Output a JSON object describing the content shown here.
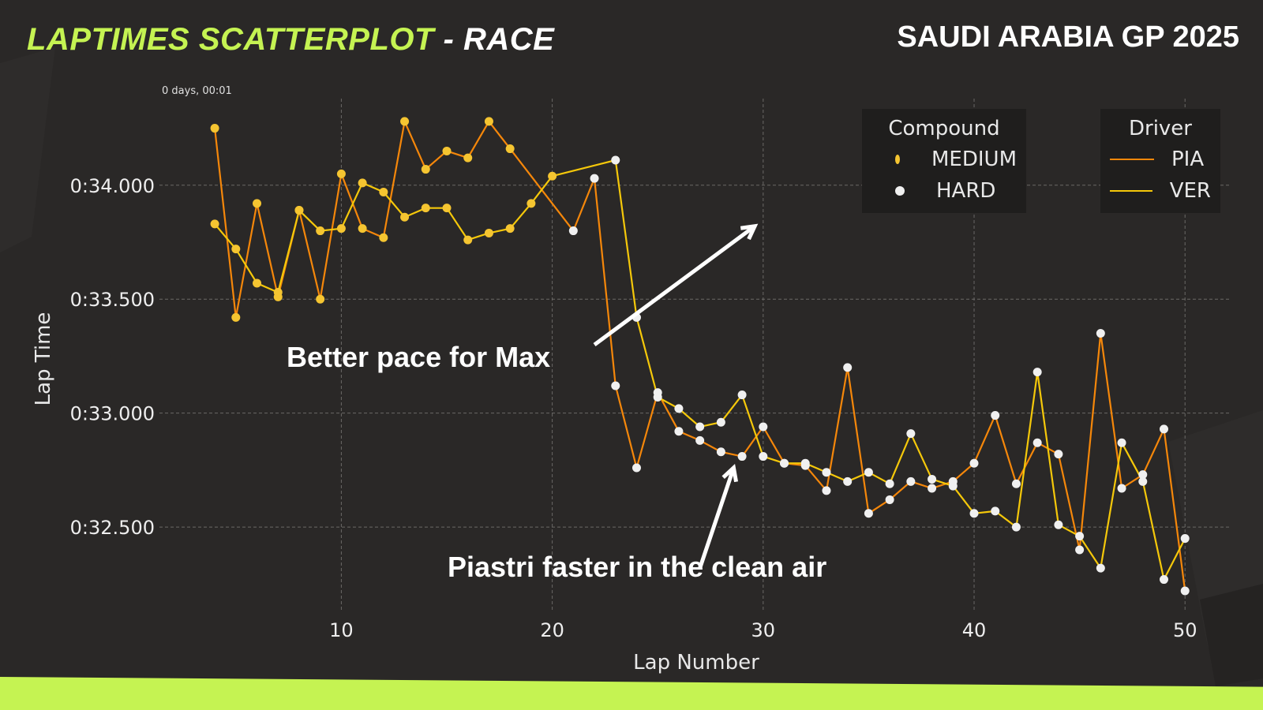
{
  "header": {
    "title_accent": "LAPTIMES SCATTERPLOT",
    "title_rest": " - RACE",
    "event": "SAUDI ARABIA GP 2025"
  },
  "axis_offset_text": "0 days, 00:01",
  "annotations": [
    {
      "text": "Better pace for Max",
      "arrow_from": [
        22,
        33.3
      ],
      "arrow_to": [
        29.6,
        33.82
      ]
    },
    {
      "text": "Piastri faster in the clean air",
      "arrow_from": [
        27,
        32.32
      ],
      "arrow_to": [
        28.6,
        32.76
      ]
    }
  ],
  "legend": {
    "compound_title": "Compound",
    "compounds": [
      {
        "label": "MEDIUM",
        "color": "#f5c531"
      },
      {
        "label": "HARD",
        "color": "#f0f0f0"
      }
    ],
    "driver_title": "Driver",
    "drivers": [
      {
        "label": "PIA",
        "color": "#f5870a"
      },
      {
        "label": "VER",
        "color": "#f5c80a"
      }
    ]
  },
  "colors": {
    "accent": "#c5f352",
    "background": "#2a2827",
    "pia_line": "#f5870a",
    "ver_line": "#f5c80a",
    "medium": "#f5c531",
    "hard": "#f0f0f0"
  },
  "chart_data": {
    "type": "scatter",
    "title": "",
    "xlabel": "Lap Number",
    "ylabel": "Lap Time",
    "xlim": [
      2.5,
      52.2
    ],
    "ylim": [
      32.13,
      34.38
    ],
    "xticks": [
      10,
      20,
      30,
      40,
      50
    ],
    "yticks": [
      32.5,
      33.0,
      33.5,
      34.0
    ],
    "ytick_labels": [
      "0:32.500",
      "0:33.000",
      "0:33.500",
      "0:34.000"
    ],
    "grid": true,
    "series": [
      {
        "name": "PIA",
        "color": "#f5870a",
        "points": [
          {
            "x": 4,
            "y": 34.25,
            "c": "MEDIUM"
          },
          {
            "x": 5,
            "y": 33.42,
            "c": "MEDIUM"
          },
          {
            "x": 6,
            "y": 33.92,
            "c": "MEDIUM"
          },
          {
            "x": 7,
            "y": 33.51,
            "c": "MEDIUM"
          },
          {
            "x": 8,
            "y": 33.89,
            "c": "MEDIUM"
          },
          {
            "x": 9,
            "y": 33.5,
            "c": "MEDIUM"
          },
          {
            "x": 10,
            "y": 34.05,
            "c": "MEDIUM"
          },
          {
            "x": 11,
            "y": 33.81,
            "c": "MEDIUM"
          },
          {
            "x": 12,
            "y": 33.77,
            "c": "MEDIUM"
          },
          {
            "x": 13,
            "y": 34.28,
            "c": "MEDIUM"
          },
          {
            "x": 14,
            "y": 34.07,
            "c": "MEDIUM"
          },
          {
            "x": 15,
            "y": 34.15,
            "c": "MEDIUM"
          },
          {
            "x": 16,
            "y": 34.12,
            "c": "MEDIUM"
          },
          {
            "x": 17,
            "y": 34.28,
            "c": "MEDIUM"
          },
          {
            "x": 18,
            "y": 34.16,
            "c": "MEDIUM"
          },
          {
            "x": 21,
            "y": 33.8,
            "c": "HARD"
          },
          {
            "x": 22,
            "y": 34.03,
            "c": "HARD"
          },
          {
            "x": 23,
            "y": 33.12,
            "c": "HARD"
          },
          {
            "x": 24,
            "y": 32.76,
            "c": "HARD"
          },
          {
            "x": 25,
            "y": 33.09,
            "c": "HARD"
          },
          {
            "x": 26,
            "y": 32.92,
            "c": "HARD"
          },
          {
            "x": 27,
            "y": 32.88,
            "c": "HARD"
          },
          {
            "x": 28,
            "y": 32.83,
            "c": "HARD"
          },
          {
            "x": 29,
            "y": 32.81,
            "c": "HARD"
          },
          {
            "x": 30,
            "y": 32.94,
            "c": "HARD"
          },
          {
            "x": 31,
            "y": 32.78,
            "c": "HARD"
          },
          {
            "x": 32,
            "y": 32.77,
            "c": "HARD"
          },
          {
            "x": 33,
            "y": 32.66,
            "c": "HARD"
          },
          {
            "x": 34,
            "y": 33.2,
            "c": "HARD"
          },
          {
            "x": 35,
            "y": 32.56,
            "c": "HARD"
          },
          {
            "x": 36,
            "y": 32.62,
            "c": "HARD"
          },
          {
            "x": 37,
            "y": 32.7,
            "c": "HARD"
          },
          {
            "x": 38,
            "y": 32.67,
            "c": "HARD"
          },
          {
            "x": 39,
            "y": 32.7,
            "c": "HARD"
          },
          {
            "x": 40,
            "y": 32.78,
            "c": "HARD"
          },
          {
            "x": 41,
            "y": 32.99,
            "c": "HARD"
          },
          {
            "x": 42,
            "y": 32.69,
            "c": "HARD"
          },
          {
            "x": 43,
            "y": 32.87,
            "c": "HARD"
          },
          {
            "x": 44,
            "y": 32.82,
            "c": "HARD"
          },
          {
            "x": 45,
            "y": 32.4,
            "c": "HARD"
          },
          {
            "x": 46,
            "y": 33.35,
            "c": "HARD"
          },
          {
            "x": 47,
            "y": 32.67,
            "c": "HARD"
          },
          {
            "x": 48,
            "y": 32.73,
            "c": "HARD"
          },
          {
            "x": 49,
            "y": 32.93,
            "c": "HARD"
          },
          {
            "x": 50,
            "y": 32.22,
            "c": "HARD"
          }
        ]
      },
      {
        "name": "VER",
        "color": "#f5c80a",
        "points": [
          {
            "x": 4,
            "y": 33.83,
            "c": "MEDIUM"
          },
          {
            "x": 5,
            "y": 33.72,
            "c": "MEDIUM"
          },
          {
            "x": 6,
            "y": 33.57,
            "c": "MEDIUM"
          },
          {
            "x": 7,
            "y": 33.53,
            "c": "MEDIUM"
          },
          {
            "x": 8,
            "y": 33.89,
            "c": "MEDIUM"
          },
          {
            "x": 9,
            "y": 33.8,
            "c": "MEDIUM"
          },
          {
            "x": 10,
            "y": 33.81,
            "c": "MEDIUM"
          },
          {
            "x": 11,
            "y": 34.01,
            "c": "MEDIUM"
          },
          {
            "x": 12,
            "y": 33.97,
            "c": "MEDIUM"
          },
          {
            "x": 13,
            "y": 33.86,
            "c": "MEDIUM"
          },
          {
            "x": 14,
            "y": 33.9,
            "c": "MEDIUM"
          },
          {
            "x": 15,
            "y": 33.9,
            "c": "MEDIUM"
          },
          {
            "x": 16,
            "y": 33.76,
            "c": "MEDIUM"
          },
          {
            "x": 17,
            "y": 33.79,
            "c": "MEDIUM"
          },
          {
            "x": 18,
            "y": 33.81,
            "c": "MEDIUM"
          },
          {
            "x": 19,
            "y": 33.92,
            "c": "MEDIUM"
          },
          {
            "x": 20,
            "y": 34.04,
            "c": "MEDIUM"
          },
          {
            "x": 23,
            "y": 34.11,
            "c": "HARD"
          },
          {
            "x": 24,
            "y": 33.42,
            "c": "HARD"
          },
          {
            "x": 25,
            "y": 33.07,
            "c": "HARD"
          },
          {
            "x": 26,
            "y": 33.02,
            "c": "HARD"
          },
          {
            "x": 27,
            "y": 32.94,
            "c": "HARD"
          },
          {
            "x": 28,
            "y": 32.96,
            "c": "HARD"
          },
          {
            "x": 29,
            "y": 33.08,
            "c": "HARD"
          },
          {
            "x": 30,
            "y": 32.81,
            "c": "HARD"
          },
          {
            "x": 31,
            "y": 32.78,
            "c": "HARD"
          },
          {
            "x": 32,
            "y": 32.78,
            "c": "HARD"
          },
          {
            "x": 33,
            "y": 32.74,
            "c": "HARD"
          },
          {
            "x": 34,
            "y": 32.7,
            "c": "HARD"
          },
          {
            "x": 35,
            "y": 32.74,
            "c": "HARD"
          },
          {
            "x": 36,
            "y": 32.69,
            "c": "HARD"
          },
          {
            "x": 37,
            "y": 32.91,
            "c": "HARD"
          },
          {
            "x": 38,
            "y": 32.71,
            "c": "HARD"
          },
          {
            "x": 39,
            "y": 32.68,
            "c": "HARD"
          },
          {
            "x": 40,
            "y": 32.56,
            "c": "HARD"
          },
          {
            "x": 41,
            "y": 32.57,
            "c": "HARD"
          },
          {
            "x": 42,
            "y": 32.5,
            "c": "HARD"
          },
          {
            "x": 43,
            "y": 33.18,
            "c": "HARD"
          },
          {
            "x": 44,
            "y": 32.51,
            "c": "HARD"
          },
          {
            "x": 45,
            "y": 32.46,
            "c": "HARD"
          },
          {
            "x": 46,
            "y": 32.32,
            "c": "HARD"
          },
          {
            "x": 47,
            "y": 32.87,
            "c": "HARD"
          },
          {
            "x": 48,
            "y": 32.7,
            "c": "HARD"
          },
          {
            "x": 49,
            "y": 32.27,
            "c": "HARD"
          },
          {
            "x": 50,
            "y": 32.45,
            "c": "HARD"
          }
        ]
      }
    ],
    "legend_position": "top-right"
  }
}
